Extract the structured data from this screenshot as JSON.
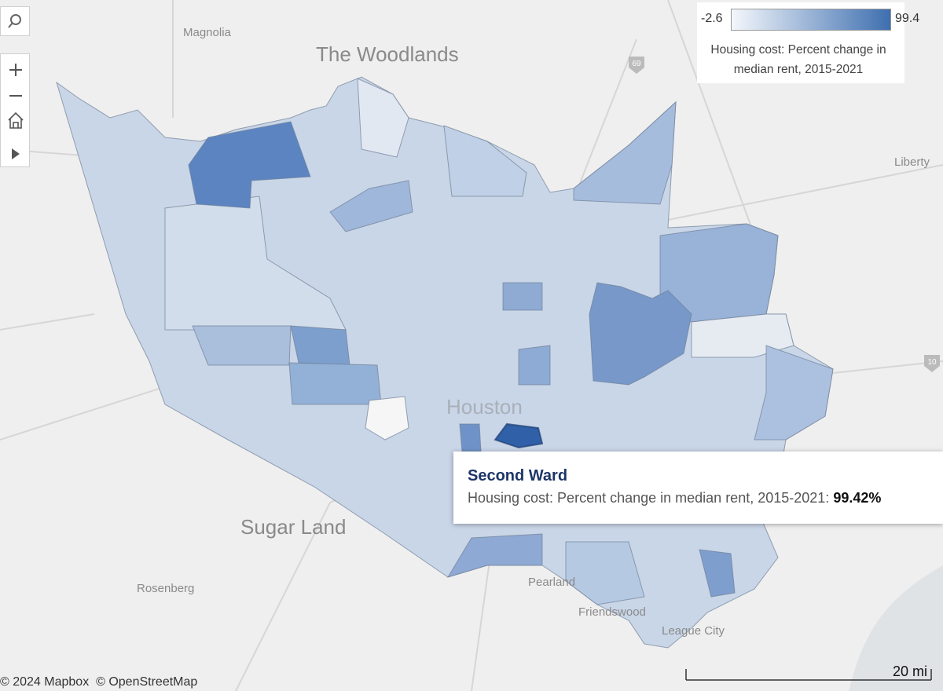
{
  "map_labels": [
    "Magnolia",
    "The Woodlands",
    "Liberty",
    "Houston",
    "Sugar Land",
    "Rosenberg",
    "Pearland",
    "Friendswood",
    "League City"
  ],
  "highway_shields": [
    "69",
    "10"
  ],
  "legend": {
    "min": "-2.6",
    "max": "99.4",
    "title": "Housing cost: Percent change in median rent, 2015-2021"
  },
  "tooltip": {
    "title": "Second Ward",
    "label": "Housing cost: Percent change in median rent, 2015-2021:",
    "value": "99.42%"
  },
  "attribution": [
    "© 2024 Mapbox",
    "© OpenStreetMap"
  ],
  "scale": "20 mi"
}
